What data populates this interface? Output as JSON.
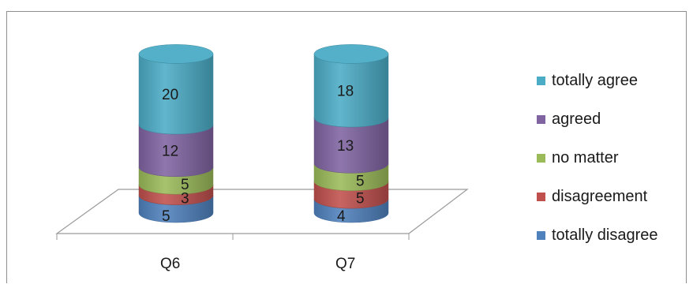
{
  "chart_data": {
    "type": "bar",
    "style": "3d stacked cylinders",
    "categories": [
      "Q6",
      "Q7"
    ],
    "series": [
      {
        "name": "totally disagree",
        "color": "#4f81bd",
        "values": [
          5,
          4
        ]
      },
      {
        "name": "disagreement",
        "color": "#c0504d",
        "values": [
          3,
          5
        ]
      },
      {
        "name": "no matter",
        "color": "#9bbb59",
        "values": [
          5,
          5
        ]
      },
      {
        "name": "agreed",
        "color": "#8064a2",
        "values": [
          12,
          13
        ]
      },
      {
        "name": "totally agree",
        "color": "#4bacc6",
        "values": [
          20,
          18
        ]
      }
    ],
    "legend_position": "right",
    "grid": false
  }
}
